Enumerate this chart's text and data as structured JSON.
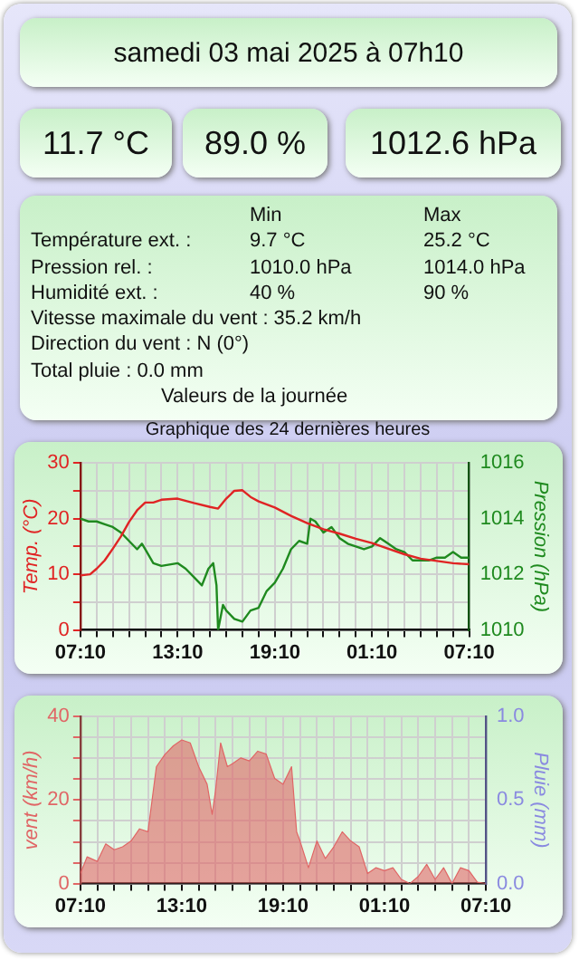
{
  "chart_data": [
    {
      "type": "other",
      "title": "samedi 03 mai 2025 à 07h10",
      "annotations": [
        "11.7 °C",
        "89.0 %",
        "1012.6 hPa",
        "Min",
        "Max",
        "Température ext. :",
        "9.7 °C",
        "25.2 °C",
        "Pression rel. :",
        "1010.0 hPa",
        "1014.0 hPa",
        "Humidité ext. :",
        "40 %",
        "90 %",
        "Vitesse maximale du vent : 35.2 km/h",
        "Direction du vent : N (0°)",
        "Total pluie : 0.0 mm",
        "Valeurs de la journée"
      ]
    },
    {
      "type": "line",
      "title": "Graphique des 24 dernières heures",
      "ylabel": "Temp. (°C)",
      "y2label": "Pression (hPa)",
      "grid": true,
      "legend": false,
      "marker": "none",
      "xlim": [
        "2025-05-02T07:10",
        "2025-05-03T07:10"
      ],
      "xticks": [
        {
          "value": "2025-05-02T07:10",
          "label": "07:10"
        },
        {
          "value": "2025-05-02T08:10",
          "label": null
        },
        {
          "value": "2025-05-02T09:10",
          "label": null
        },
        {
          "value": "2025-05-02T10:10",
          "label": null
        },
        {
          "value": "2025-05-02T11:10",
          "label": null
        },
        {
          "value": "2025-05-02T12:10",
          "label": null
        },
        {
          "value": "2025-05-02T13:10",
          "label": "13:10"
        },
        {
          "value": "2025-05-02T14:10",
          "label": null
        },
        {
          "value": "2025-05-02T15:10",
          "label": null
        },
        {
          "value": "2025-05-02T16:10",
          "label": null
        },
        {
          "value": "2025-05-02T17:10",
          "label": null
        },
        {
          "value": "2025-05-02T18:10",
          "label": null
        },
        {
          "value": "2025-05-02T19:10",
          "label": "19:10"
        },
        {
          "value": "2025-05-02T20:10",
          "label": null
        },
        {
          "value": "2025-05-02T21:10",
          "label": null
        },
        {
          "value": "2025-05-02T22:10",
          "label": null
        },
        {
          "value": "2025-05-02T23:10",
          "label": null
        },
        {
          "value": "2025-05-03T00:10",
          "label": null
        },
        {
          "value": "2025-05-03T01:10",
          "label": "01:10"
        },
        {
          "value": "2025-05-03T02:10",
          "label": null
        },
        {
          "value": "2025-05-03T03:10",
          "label": null
        },
        {
          "value": "2025-05-03T04:10",
          "label": null
        },
        {
          "value": "2025-05-03T05:10",
          "label": null
        },
        {
          "value": "2025-05-03T06:10",
          "label": null
        },
        {
          "value": "2025-05-03T07:10",
          "label": "07:10"
        }
      ],
      "ylim": [
        0,
        30
      ],
      "yticks": [
        0,
        {
          "value": 5,
          "label": null
        },
        10,
        {
          "value": 15,
          "label": null
        },
        20,
        {
          "value": 25,
          "label": null
        },
        30
      ],
      "y2lim": [
        1010,
        1016
      ],
      "y2ticks": [
        1010,
        {
          "value": 1011,
          "label": null
        },
        1012,
        {
          "value": 1013,
          "label": null
        },
        1014,
        {
          "value": 1015,
          "label": null
        },
        1016
      ],
      "series": [
        {
          "color": "#e02424",
          "x": [
            "2025-05-02T07:10",
            "2025-05-02T07:46",
            "2025-05-02T08:10",
            "2025-05-02T08:40",
            "2025-05-02T09:10",
            "2025-05-02T09:40",
            "2025-05-02T10:10",
            "2025-05-02T10:40",
            "2025-05-02T11:10",
            "2025-05-02T11:40",
            "2025-05-02T12:10",
            "2025-05-02T13:10",
            "2025-05-02T14:10",
            "2025-05-02T15:10",
            "2025-05-02T15:40",
            "2025-05-02T16:10",
            "2025-05-02T16:40",
            "2025-05-02T17:10",
            "2025-05-02T17:40",
            "2025-05-02T18:10",
            "2025-05-02T19:10",
            "2025-05-02T20:10",
            "2025-05-02T21:10",
            "2025-05-02T22:10",
            "2025-05-02T23:10",
            "2025-05-03T00:10",
            "2025-05-03T01:10",
            "2025-05-03T02:10",
            "2025-05-03T03:10",
            "2025-05-03T04:10",
            "2025-05-03T05:10",
            "2025-05-03T06:10",
            "2025-05-03T07:10"
          ],
          "values": [
            9.8,
            10,
            11,
            12.5,
            14.6,
            16.8,
            19.4,
            21.5,
            22.9,
            22.9,
            23.4,
            23.6,
            22.8,
            22.1,
            21.8,
            23.6,
            25,
            25.1,
            23.9,
            23.1,
            22,
            20.5,
            19.2,
            18.1,
            17.3,
            16.4,
            15.6,
            14.6,
            13.6,
            12.8,
            12.4,
            12,
            11.8
          ]
        },
        {
          "color": "#1f8a1f",
          "axis": "y2",
          "x": [
            "2025-05-02T07:10",
            "2025-05-02T07:40",
            "2025-05-02T08:10",
            "2025-05-02T08:40",
            "2025-05-02T09:10",
            "2025-05-02T09:40",
            "2025-05-02T10:10",
            "2025-05-02T10:40",
            "2025-05-02T10:58",
            "2025-05-02T11:10",
            "2025-05-02T11:40",
            "2025-05-02T12:10",
            "2025-05-02T13:10",
            "2025-05-02T13:40",
            "2025-05-02T14:10",
            "2025-05-02T14:40",
            "2025-05-02T15:04",
            "2025-05-02T15:22",
            "2025-05-02T15:34",
            "2025-05-02T15:40",
            "2025-05-02T15:58",
            "2025-05-02T16:10",
            "2025-05-02T16:40",
            "2025-05-02T17:10",
            "2025-05-02T17:40",
            "2025-05-02T18:10",
            "2025-05-02T18:40",
            "2025-05-02T19:10",
            "2025-05-02T19:40",
            "2025-05-02T20:10",
            "2025-05-02T20:40",
            "2025-05-02T21:10",
            "2025-05-02T21:22",
            "2025-05-02T21:40",
            "2025-05-02T22:10",
            "2025-05-02T22:40",
            "2025-05-02T23:10",
            "2025-05-02T23:40",
            "2025-05-03T00:10",
            "2025-05-03T00:40",
            "2025-05-03T01:10",
            "2025-05-03T01:40",
            "2025-05-03T02:10",
            "2025-05-03T02:40",
            "2025-05-03T03:10",
            "2025-05-03T03:40",
            "2025-05-03T04:10",
            "2025-05-03T04:40",
            "2025-05-03T05:10",
            "2025-05-03T05:40",
            "2025-05-03T06:10",
            "2025-05-03T06:40",
            "2025-05-03T07:10"
          ],
          "values": [
            1014.0,
            1013.9,
            1013.9,
            1013.8,
            1013.7,
            1013.5,
            1013.2,
            1012.9,
            1013.1,
            1012.9,
            1012.4,
            1012.3,
            1012.4,
            1012.2,
            1011.9,
            1011.6,
            1012.2,
            1012.4,
            1011.6,
            1010.0,
            1010.9,
            1010.7,
            1010.4,
            1010.3,
            1010.7,
            1010.8,
            1011.4,
            1011.7,
            1012.2,
            1012.9,
            1013.2,
            1013.1,
            1014.0,
            1013.9,
            1013.5,
            1013.7,
            1013.3,
            1013.1,
            1013.0,
            1012.9,
            1013.0,
            1013.3,
            1013.1,
            1012.9,
            1012.8,
            1012.5,
            1012.5,
            1012.5,
            1012.6,
            1012.6,
            1012.8,
            1012.6,
            1012.6
          ]
        }
      ]
    },
    {
      "type": "area",
      "ylabel": "vent (km/h)",
      "y2label": "Pluie (mm)",
      "grid": true,
      "legend": false,
      "marker": "none",
      "xlim": [
        "2025-05-02T07:10",
        "2025-05-03T07:10"
      ],
      "xticks": [
        {
          "value": "2025-05-02T07:10",
          "label": "07:10"
        },
        {
          "value": "2025-05-02T08:10",
          "label": null
        },
        {
          "value": "2025-05-02T09:10",
          "label": null
        },
        {
          "value": "2025-05-02T10:10",
          "label": null
        },
        {
          "value": "2025-05-02T11:10",
          "label": null
        },
        {
          "value": "2025-05-02T12:10",
          "label": null
        },
        {
          "value": "2025-05-02T13:10",
          "label": "13:10"
        },
        {
          "value": "2025-05-02T14:10",
          "label": null
        },
        {
          "value": "2025-05-02T15:10",
          "label": null
        },
        {
          "value": "2025-05-02T16:10",
          "label": null
        },
        {
          "value": "2025-05-02T17:10",
          "label": null
        },
        {
          "value": "2025-05-02T18:10",
          "label": null
        },
        {
          "value": "2025-05-02T19:10",
          "label": "19:10"
        },
        {
          "value": "2025-05-02T20:10",
          "label": null
        },
        {
          "value": "2025-05-02T21:10",
          "label": null
        },
        {
          "value": "2025-05-02T22:10",
          "label": null
        },
        {
          "value": "2025-05-02T23:10",
          "label": null
        },
        {
          "value": "2025-05-03T00:10",
          "label": null
        },
        {
          "value": "2025-05-03T01:10",
          "label": "01:10"
        },
        {
          "value": "2025-05-03T02:10",
          "label": null
        },
        {
          "value": "2025-05-03T03:10",
          "label": null
        },
        {
          "value": "2025-05-03T04:10",
          "label": null
        },
        {
          "value": "2025-05-03T05:10",
          "label": null
        },
        {
          "value": "2025-05-03T06:10",
          "label": null
        },
        {
          "value": "2025-05-03T07:10",
          "label": "07:10"
        }
      ],
      "ylim": [
        0,
        40
      ],
      "yticks": [
        0,
        {
          "value": 5,
          "label": null
        },
        {
          "value": 10,
          "label": null
        },
        {
          "value": 15,
          "label": null
        },
        20,
        {
          "value": 25,
          "label": null
        },
        {
          "value": 30,
          "label": null
        },
        {
          "value": 35,
          "label": null
        },
        40
      ],
      "y2lim": [
        0,
        1
      ],
      "y2ticks": [
        {
          "value": 0,
          "label": "0.0"
        },
        {
          "value": 0.25,
          "label": null
        },
        {
          "value": 0.5,
          "label": "0.5"
        },
        {
          "value": 0.75,
          "label": null
        },
        {
          "value": 1,
          "label": "1.0"
        }
      ],
      "series": [
        {
          "color": "#e06666",
          "x": [
            "2025-05-02T07:10",
            "2025-05-02T07:34",
            "2025-05-02T08:10",
            "2025-05-02T08:40",
            "2025-05-02T09:10",
            "2025-05-02T09:40",
            "2025-05-02T10:10",
            "2025-05-02T10:40",
            "2025-05-02T11:10",
            "2025-05-02T11:40",
            "2025-05-02T12:10",
            "2025-05-02T12:40",
            "2025-05-02T13:10",
            "2025-05-02T13:40",
            "2025-05-02T14:10",
            "2025-05-02T14:40",
            "2025-05-02T14:58",
            "2025-05-02T15:10",
            "2025-05-02T15:28",
            "2025-05-02T15:52",
            "2025-05-02T16:10",
            "2025-05-02T16:40",
            "2025-05-02T17:10",
            "2025-05-02T17:40",
            "2025-05-02T18:10",
            "2025-05-02T18:40",
            "2025-05-02T19:10",
            "2025-05-02T19:40",
            "2025-05-02T19:58",
            "2025-05-02T20:10",
            "2025-05-02T20:40",
            "2025-05-02T21:10",
            "2025-05-02T21:40",
            "2025-05-02T22:10",
            "2025-05-02T22:40",
            "2025-05-02T23:10",
            "2025-05-02T23:40",
            "2025-05-03T00:10",
            "2025-05-03T00:40",
            "2025-05-03T01:10",
            "2025-05-03T01:40",
            "2025-05-03T02:10",
            "2025-05-03T02:40",
            "2025-05-03T03:10",
            "2025-05-03T03:40",
            "2025-05-03T04:10",
            "2025-05-03T04:40",
            "2025-05-03T05:10",
            "2025-05-03T05:40",
            "2025-05-03T06:10",
            "2025-05-03T06:40",
            "2025-05-03T07:10"
          ],
          "values": [
            2.4,
            6.4,
            5.3,
            9.5,
            8.1,
            8.8,
            10.2,
            13.1,
            12.4,
            28,
            30.9,
            33,
            34.4,
            33.7,
            28,
            23.8,
            16.6,
            22.3,
            33.7,
            28,
            28.7,
            30.1,
            29.4,
            31.7,
            31,
            25.2,
            23.8,
            28,
            12.4,
            10.2,
            3.8,
            10.2,
            6,
            8.8,
            12.4,
            10.2,
            8.8,
            2.4,
            3.8,
            3.1,
            3.8,
            1,
            0,
            1.7,
            4.6,
            1,
            3.8,
            0,
            3.8,
            3.1,
            0.3,
            0
          ]
        }
      ]
    }
  ]
}
